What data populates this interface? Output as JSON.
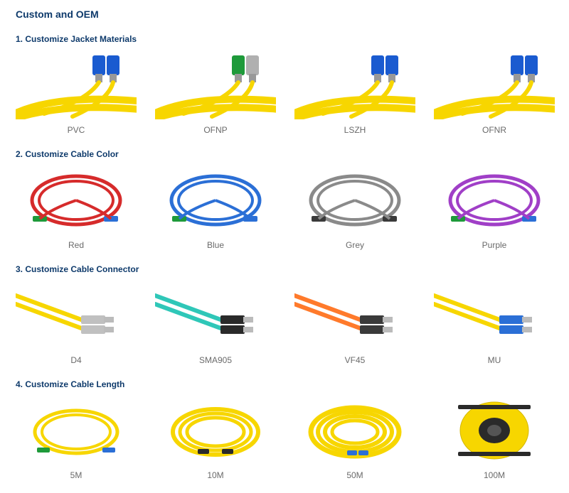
{
  "page_title": "Custom and OEM",
  "sections": [
    {
      "title": "1. Customize Jacket Materials",
      "items": [
        {
          "label": "PVC",
          "cable_color": "#f7d600",
          "conn_color": "#1a5bd0",
          "conn2_color": "#1a5bd0",
          "style": "jacket"
        },
        {
          "label": "OFNP",
          "cable_color": "#f7d600",
          "conn_color": "#1e9a3a",
          "conn2_color": "#b0b0b0",
          "style": "jacket"
        },
        {
          "label": "LSZH",
          "cable_color": "#f7d600",
          "conn_color": "#1a5bd0",
          "conn2_color": "#1a5bd0",
          "style": "jacket"
        },
        {
          "label": "OFNR",
          "cable_color": "#f7d600",
          "conn_color": "#1a5bd0",
          "conn2_color": "#1a5bd0",
          "style": "jacket"
        }
      ]
    },
    {
      "title": "2. Customize Cable Color",
      "items": [
        {
          "label": "Red",
          "cable_color": "#d62b2b",
          "conn_color": "#1e9a3a",
          "conn2_color": "#2b6fd6",
          "style": "loop"
        },
        {
          "label": "Blue",
          "cable_color": "#2b6fd6",
          "conn_color": "#1e9a3a",
          "conn2_color": "#2b6fd6",
          "style": "loop"
        },
        {
          "label": "Grey",
          "cable_color": "#8a8a8a",
          "conn_color": "#3a3a3a",
          "conn2_color": "#3a3a3a",
          "style": "loop"
        },
        {
          "label": "Purple",
          "cable_color": "#a03fc7",
          "conn_color": "#1e9a3a",
          "conn2_color": "#2b6fd6",
          "style": "loop"
        }
      ]
    },
    {
      "title": "3. Customize Cable Connector",
      "items": [
        {
          "label": "D4",
          "cable_color": "#f7d600",
          "conn_color": "#c0c0c0",
          "conn2_color": "#c0c0c0",
          "style": "connector"
        },
        {
          "label": "SMA905",
          "cable_color": "#2fc7b8",
          "conn_color": "#2a2a2a",
          "conn2_color": "#2a2a2a",
          "style": "connector"
        },
        {
          "label": "VF45",
          "cable_color": "#ff7a2b",
          "conn_color": "#3a3a3a",
          "conn2_color": "#3a3a3a",
          "style": "connector"
        },
        {
          "label": "MU",
          "cable_color": "#f7d600",
          "conn_color": "#2b6fd6",
          "conn2_color": "#2b6fd6",
          "style": "connector"
        }
      ]
    },
    {
      "title": "4. Customize Cable Length",
      "items": [
        {
          "label": "5M",
          "cable_color": "#f7d600",
          "conn_color": "#1e9a3a",
          "conn2_color": "#2b6fd6",
          "style": "coil_small"
        },
        {
          "label": "10M",
          "cable_color": "#f7d600",
          "conn_color": "#2a2a2a",
          "conn2_color": "#2a2a2a",
          "style": "coil_med"
        },
        {
          "label": "50M",
          "cable_color": "#f7d600",
          "conn_color": "#2b6fd6",
          "conn2_color": "#2b6fd6",
          "style": "coil_large"
        },
        {
          "label": "100M",
          "cable_color": "#f7d600",
          "conn_color": "#2a2a2a",
          "conn2_color": "#2a2a2a",
          "style": "spool"
        }
      ]
    }
  ],
  "bg_color": "#ffffff",
  "title_color": "#0e3a6b",
  "caption_color": "#6a6a6a"
}
